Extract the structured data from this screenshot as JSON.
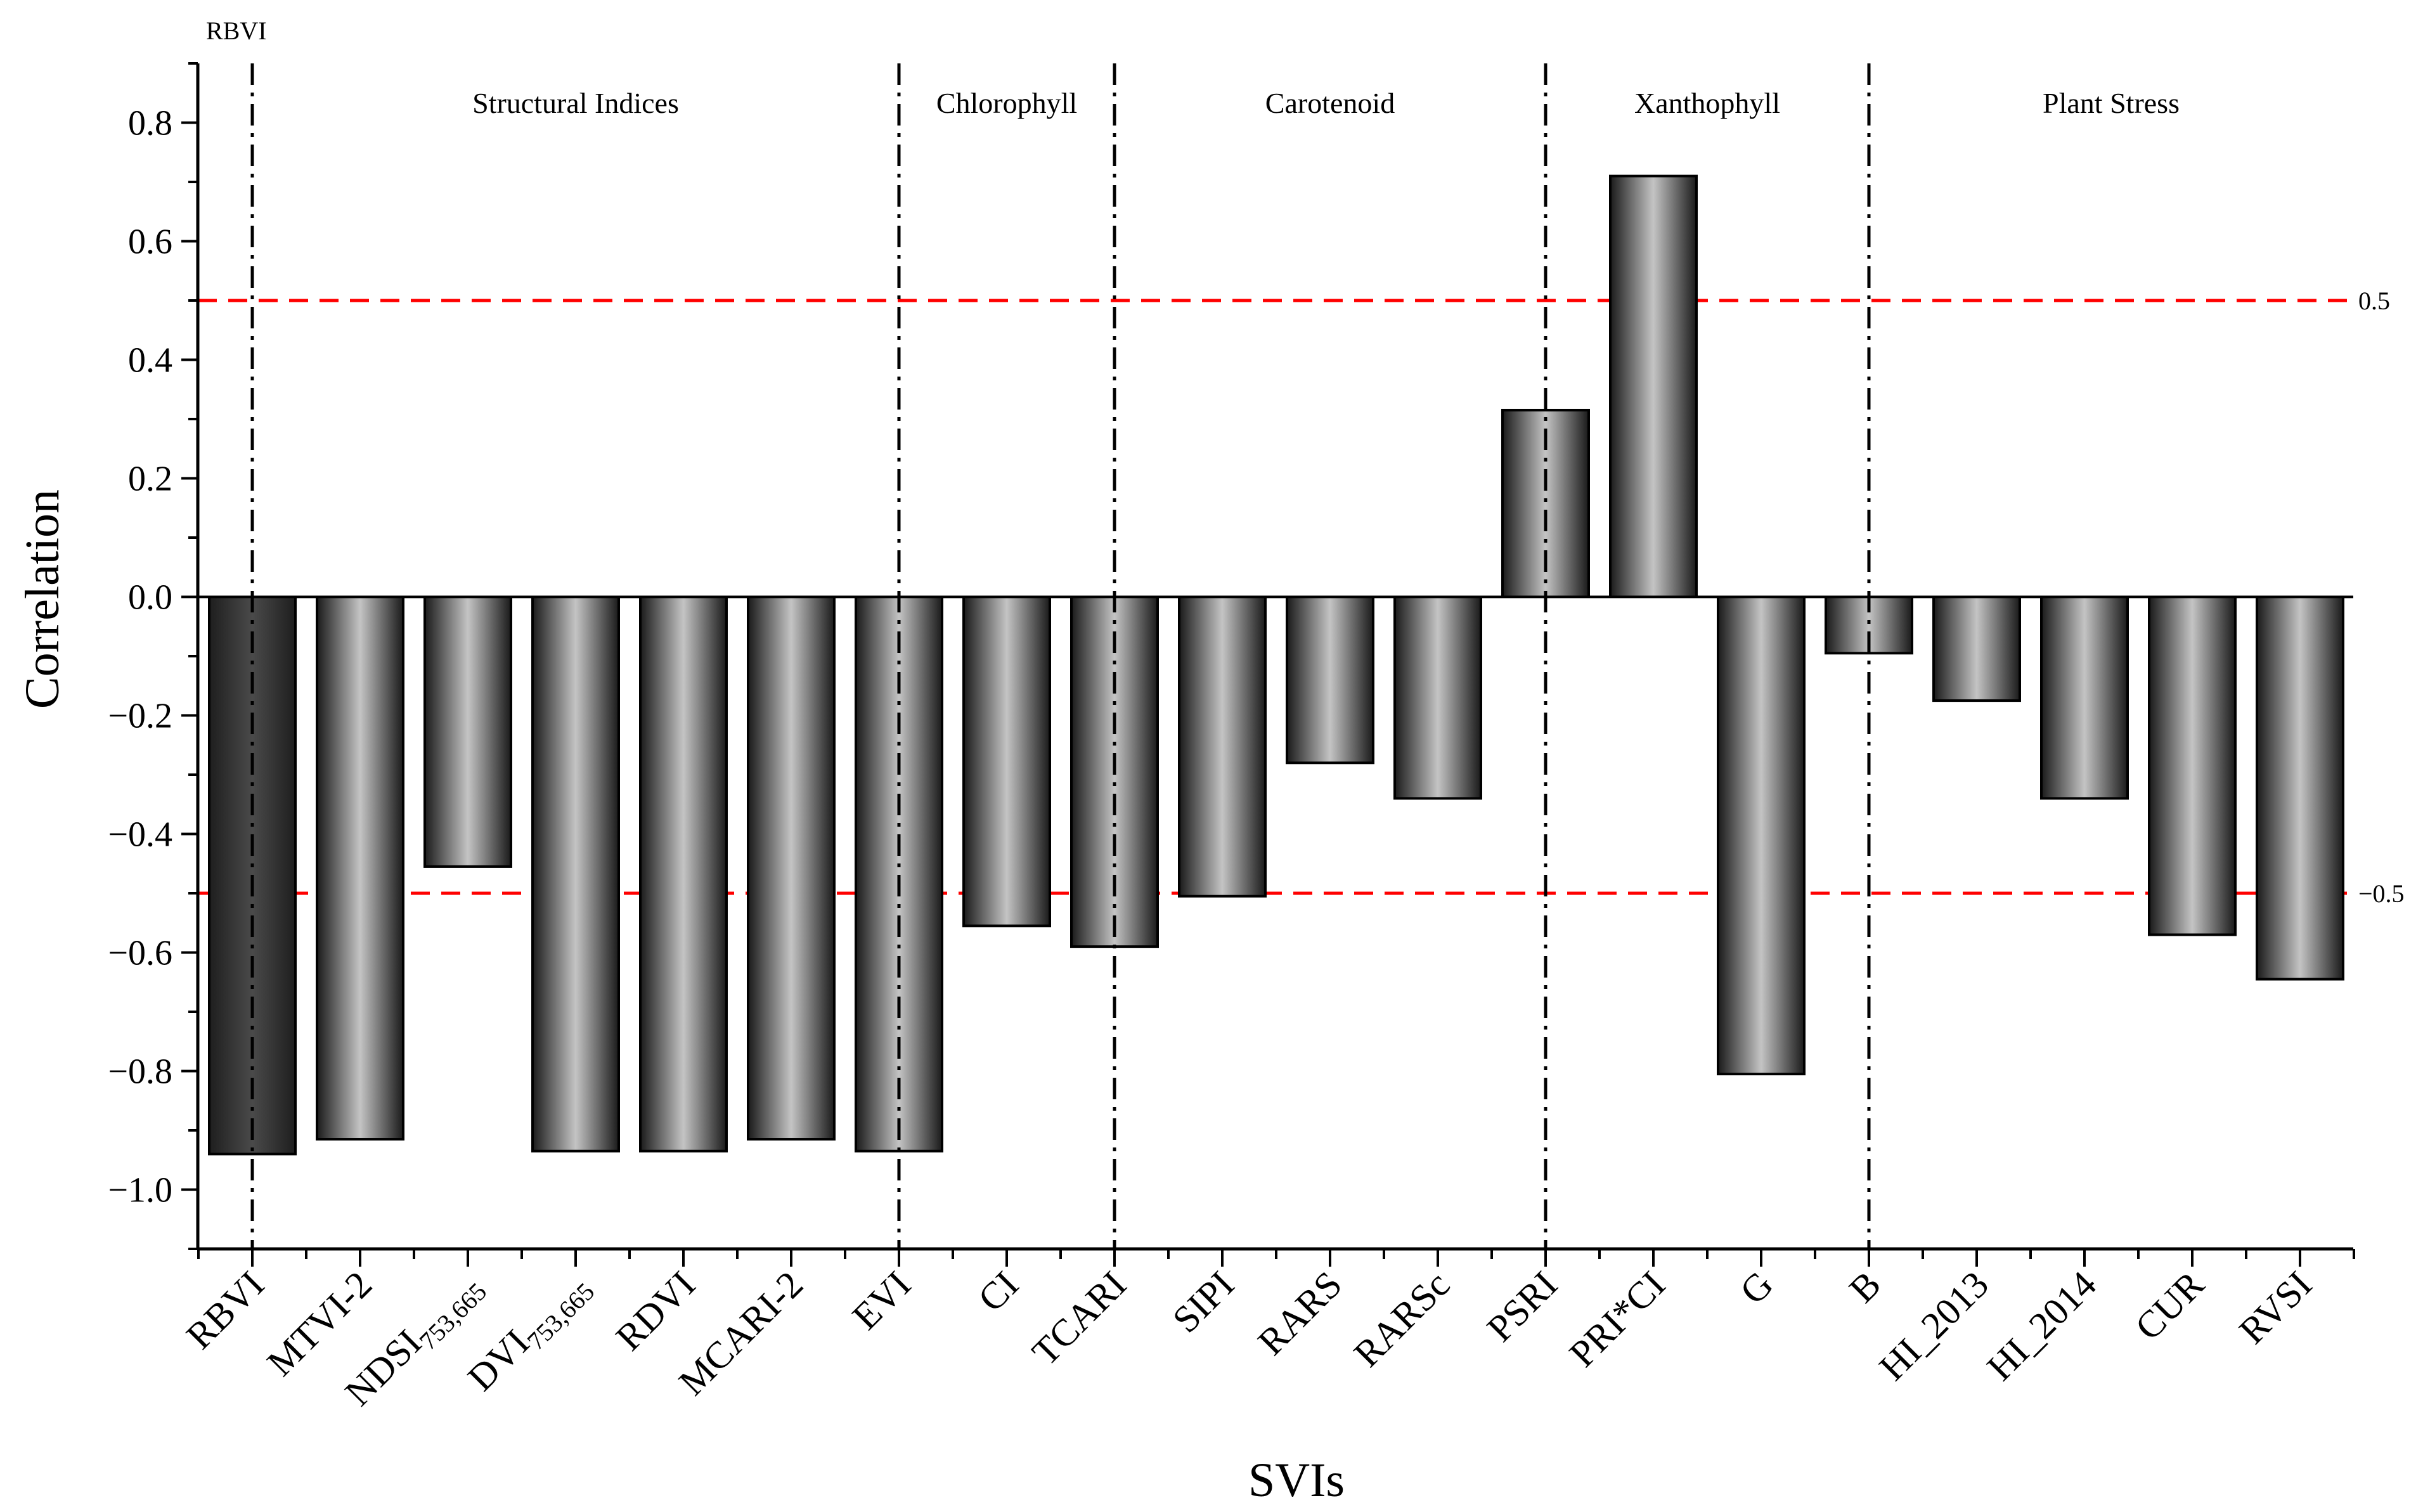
{
  "chart_data": {
    "type": "bar",
    "xlabel": "SVIs",
    "ylabel": "Correlation",
    "ylim": [
      -1.1,
      0.9
    ],
    "yticks": [
      -1.0,
      -0.8,
      -0.6,
      -0.4,
      -0.2,
      0.0,
      0.2,
      0.4,
      0.6,
      0.8
    ],
    "ytick_labels": [
      "−1.0",
      "−0.8",
      "−0.6",
      "−0.4",
      "−0.2",
      "0.0",
      "0.2",
      "0.4",
      "0.6",
      "0.8"
    ],
    "categories": [
      {
        "label": "RBVI",
        "sub": ""
      },
      {
        "label": "MTVI-2",
        "sub": ""
      },
      {
        "label": "NDSI",
        "sub": "753,665"
      },
      {
        "label": "DVI",
        "sub": "753,665"
      },
      {
        "label": "RDVI",
        "sub": ""
      },
      {
        "label": "MCARI-2",
        "sub": ""
      },
      {
        "label": "EVI",
        "sub": ""
      },
      {
        "label": "CI",
        "sub": ""
      },
      {
        "label": "TCARI",
        "sub": ""
      },
      {
        "label": "SIPI",
        "sub": ""
      },
      {
        "label": "RARS",
        "sub": ""
      },
      {
        "label": "RARSc",
        "sub": ""
      },
      {
        "label": "PSRI",
        "sub": ""
      },
      {
        "label": "PRI*CI",
        "sub": ""
      },
      {
        "label": "G",
        "sub": ""
      },
      {
        "label": "B",
        "sub": ""
      },
      {
        "label": "HI_2013",
        "sub": ""
      },
      {
        "label": "HI_2014",
        "sub": ""
      },
      {
        "label": "CUR",
        "sub": ""
      },
      {
        "label": "RVSI",
        "sub": ""
      }
    ],
    "values": [
      -0.94,
      -0.915,
      -0.455,
      -0.935,
      -0.935,
      -0.915,
      -0.935,
      -0.555,
      -0.59,
      -0.505,
      -0.28,
      -0.34,
      0.315,
      0.71,
      -0.805,
      -0.095,
      -0.175,
      -0.34,
      -0.57,
      -0.645
    ],
    "highlight_index": 0,
    "reference_lines": [
      {
        "value": 0.5,
        "label": "0.5",
        "color": "#ff0000"
      },
      {
        "value": -0.5,
        "label": "−0.5",
        "color": "#ff0000"
      }
    ],
    "group_separators_after_category": [
      0,
      6,
      8,
      12,
      15
    ],
    "groups": [
      {
        "label": "Structural Indices",
        "center_between": [
          0,
          6
        ]
      },
      {
        "label": "Chlorophyll",
        "center_between": [
          6,
          8
        ]
      },
      {
        "label": "Carotenoid",
        "center_between": [
          8,
          12
        ]
      },
      {
        "label": "Xanthophyll",
        "center_between": [
          12,
          15
        ]
      },
      {
        "label": "Plant Stress",
        "center_between": [
          15,
          20
        ]
      }
    ],
    "top_left_label": "RBVI",
    "grid": false,
    "legend": "none"
  }
}
